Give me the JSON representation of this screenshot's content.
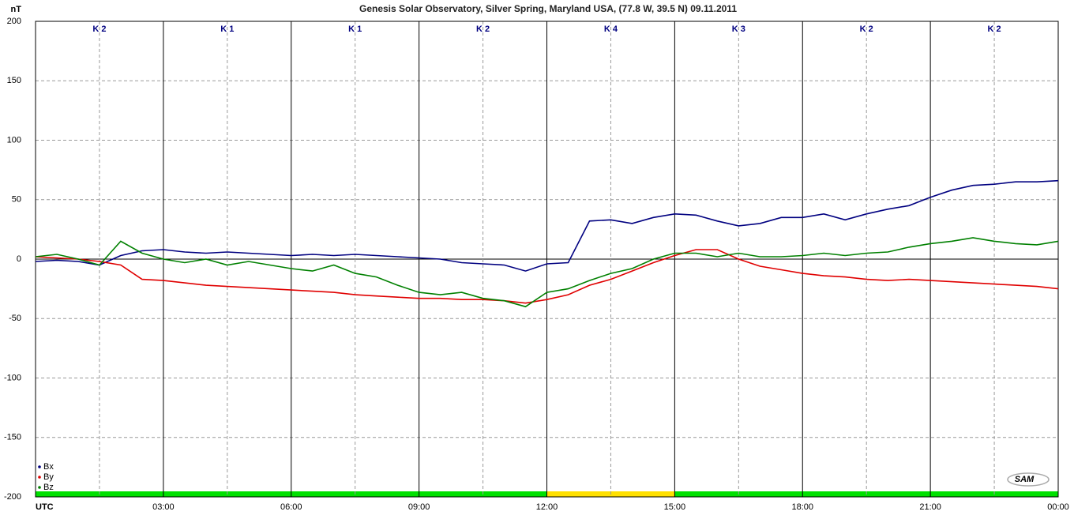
{
  "chart_data": {
    "type": "line",
    "title": "Genesis Solar Observatory, Silver Spring, Maryland USA, (77.8 W, 39.5 N)  09.11.2011",
    "y_axis_label": "nT",
    "logo": "SAM",
    "x": [
      0,
      0.5,
      1,
      1.5,
      2,
      2.5,
      3,
      3.5,
      4,
      4.5,
      5,
      5.5,
      6,
      6.5,
      7,
      7.5,
      8,
      8.5,
      9,
      9.5,
      10,
      10.5,
      11,
      11.5,
      12,
      12.5,
      13,
      13.5,
      14,
      14.5,
      15,
      15.5,
      16,
      16.5,
      17,
      17.5,
      18,
      18.5,
      19,
      19.5,
      20,
      20.5,
      21,
      21.5,
      22,
      22.5,
      23,
      23.5,
      24
    ],
    "series": [
      {
        "name": "Bx",
        "color": "#000080",
        "values": [
          -2,
          -1,
          -2,
          -5,
          3,
          7,
          8,
          6,
          5,
          6,
          5,
          4,
          3,
          4,
          3,
          4,
          3,
          2,
          1,
          0,
          -3,
          -4,
          -5,
          -10,
          -4,
          -3,
          32,
          33,
          30,
          35,
          38,
          37,
          32,
          28,
          30,
          35,
          35,
          38,
          33,
          38,
          42,
          45,
          52,
          58,
          62,
          63,
          65,
          65,
          66
        ]
      },
      {
        "name": "By",
        "color": "#e00000",
        "values": [
          2,
          1,
          0,
          -2,
          -5,
          -17,
          -18,
          -20,
          -22,
          -23,
          -24,
          -25,
          -26,
          -27,
          -28,
          -30,
          -31,
          -32,
          -33,
          -33,
          -34,
          -34,
          -35,
          -37,
          -34,
          -30,
          -22,
          -17,
          -10,
          -3,
          3,
          8,
          8,
          0,
          -6,
          -9,
          -12,
          -14,
          -15,
          -17,
          -18,
          -17,
          -18,
          -19,
          -20,
          -21,
          -22,
          -23,
          -25
        ]
      },
      {
        "name": "Bz",
        "color": "#008000",
        "values": [
          2,
          4,
          0,
          -5,
          15,
          5,
          0,
          -3,
          0,
          -5,
          -2,
          -5,
          -8,
          -10,
          -5,
          -12,
          -15,
          -22,
          -28,
          -30,
          -28,
          -33,
          -35,
          -40,
          -28,
          -25,
          -18,
          -12,
          -8,
          0,
          5,
          5,
          2,
          5,
          2,
          2,
          3,
          5,
          3,
          5,
          6,
          10,
          13,
          15,
          18,
          15,
          13,
          12,
          15
        ]
      }
    ],
    "xlim": [
      0,
      24
    ],
    "xticks": [
      {
        "value": 0,
        "label": "UTC"
      },
      {
        "value": 3,
        "label": "03:00"
      },
      {
        "value": 6,
        "label": "06:00"
      },
      {
        "value": 9,
        "label": "09:00"
      },
      {
        "value": 12,
        "label": "12:00"
      },
      {
        "value": 15,
        "label": "15:00"
      },
      {
        "value": 18,
        "label": "18:00"
      },
      {
        "value": 21,
        "label": "21:00"
      },
      {
        "value": 24,
        "label": "00:00"
      }
    ],
    "ylim": [
      -200,
      200
    ],
    "yticks": [
      -200,
      -150,
      -100,
      -50,
      0,
      50,
      100,
      150,
      200
    ],
    "k_index": [
      "K 2",
      "K 1",
      "K 1",
      "K 2",
      "K 4",
      "K 3",
      "K 2",
      "K 2"
    ],
    "status_bar": [
      {
        "from": 0,
        "to": 12,
        "color": "#00e000"
      },
      {
        "from": 12,
        "to": 15,
        "color": "#ffe000"
      },
      {
        "from": 15,
        "to": 24,
        "color": "#00e000"
      }
    ],
    "grid": true,
    "legend": "lower left"
  }
}
